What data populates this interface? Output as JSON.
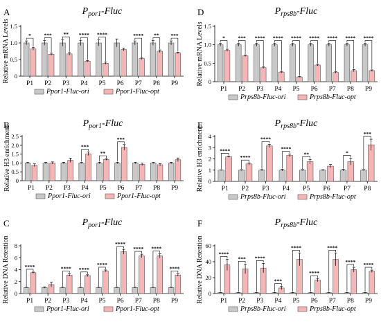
{
  "colors": {
    "ori": "#c8c8c8",
    "opt": "#f7b4b4",
    "stroke": "#000000"
  },
  "chart_data": [
    {
      "type": "bar",
      "panel": "A",
      "title_base": "P",
      "title_sub": "por1",
      "title_rest": "-Fluc",
      "ylabel": "Relative mRNA Levels",
      "ylim": [
        0,
        1.5
      ],
      "yticks": [
        0,
        0.5,
        1.0,
        1.5
      ],
      "ytick_labels": [
        "0",
        "0.5",
        "1.0",
        "1.5"
      ],
      "categories": [
        "P1",
        "P2",
        "P3",
        "P4",
        "P5",
        "P6",
        "P7",
        "P8",
        "P9"
      ],
      "series": [
        {
          "name": "Ppor1-Fluc-ori",
          "values": [
            1.0,
            1.0,
            1.0,
            1.0,
            1.0,
            1.0,
            1.0,
            1.0,
            1.0
          ],
          "errors": [
            0.06,
            0.07,
            0.1,
            0.08,
            0.09,
            0.12,
            0.06,
            0.07,
            0.06
          ]
        },
        {
          "name": "Ppor1-Fluc-opt",
          "values": [
            0.82,
            0.66,
            0.67,
            0.45,
            0.39,
            0.8,
            0.53,
            0.75,
            0.7
          ],
          "errors": [
            0.04,
            0.03,
            0.04,
            0.02,
            0.03,
            0.04,
            0.03,
            0.04,
            0.02
          ]
        }
      ],
      "significance": [
        "*",
        "***",
        "**",
        "****",
        "****",
        "",
        "****",
        "**",
        "***"
      ]
    },
    {
      "type": "bar",
      "panel": "B",
      "title_base": "P",
      "title_sub": "por1",
      "title_rest": "-Fluc",
      "ylabel": "Relative H3 enrichment",
      "ylim": [
        0,
        2.5
      ],
      "yticks": [
        0,
        0.5,
        1.0,
        1.5,
        2.0,
        2.5
      ],
      "ytick_labels": [
        "0",
        "0.5",
        "1.0",
        "1.5",
        "2.0",
        "2.5"
      ],
      "categories": [
        "P1",
        "P2",
        "P3",
        "P4",
        "P5",
        "P6",
        "P7",
        "P8",
        "P9"
      ],
      "series": [
        {
          "name": "Ppor1-Fluc-ori",
          "values": [
            1.0,
            1.0,
            1.0,
            1.0,
            1.0,
            1.0,
            1.0,
            1.0,
            1.0
          ],
          "errors": [
            0.03,
            0.04,
            0.04,
            0.03,
            0.04,
            0.04,
            0.04,
            0.03,
            0.04
          ]
        },
        {
          "name": "Ppor1-Fluc-opt",
          "values": [
            0.87,
            1.0,
            1.15,
            1.52,
            1.2,
            1.88,
            0.92,
            0.9,
            1.18
          ],
          "errors": [
            0.08,
            0.06,
            0.12,
            0.1,
            0.05,
            0.16,
            0.07,
            0.06,
            0.1
          ]
        }
      ],
      "significance": [
        "",
        "",
        "",
        "***",
        "**",
        "***",
        "",
        "",
        ""
      ]
    },
    {
      "type": "bar",
      "panel": "C",
      "title_base": "P",
      "title_sub": "por1",
      "title_rest": "-Fluc",
      "ylabel": "Relative DNA Retention",
      "ylim": [
        0,
        8
      ],
      "yticks": [
        0,
        2,
        4,
        6,
        8
      ],
      "ytick_labels": [
        "0",
        "2",
        "4",
        "6",
        "8"
      ],
      "categories": [
        "P1",
        "P2",
        "P3",
        "P4",
        "P5",
        "P6",
        "P7",
        "P8",
        "P9"
      ],
      "series": [
        {
          "name": "Ppor1-Fluc-ori",
          "values": [
            1.0,
            1.0,
            1.0,
            1.0,
            1.0,
            1.0,
            1.0,
            1.0,
            1.0
          ],
          "errors": [
            0.05,
            0.1,
            0.05,
            0.05,
            0.05,
            0.05,
            0.05,
            0.05,
            0.05
          ]
        },
        {
          "name": "Ppor1-Fluc-opt",
          "values": [
            3.5,
            1.5,
            3.1,
            3.0,
            3.8,
            7.0,
            6.3,
            6.3,
            3.1
          ],
          "errors": [
            0.1,
            0.4,
            0.2,
            0.15,
            0.15,
            0.4,
            0.3,
            0.35,
            0.2
          ]
        }
      ],
      "significance": [
        "****",
        "",
        "****",
        "****",
        "****",
        "****",
        "****",
        "****",
        "****"
      ]
    },
    {
      "type": "bar",
      "panel": "D",
      "title_base": "P",
      "title_sub": "rps8b",
      "title_rest": "-Fluc",
      "ylabel": "Relative mRNA Levels",
      "ylim": [
        0,
        1.5
      ],
      "yticks": [
        0,
        0.5,
        1.0,
        1.5
      ],
      "ytick_labels": [
        "0",
        "0.5",
        "1.0",
        "1.5"
      ],
      "categories": [
        "P1",
        "P2",
        "P3",
        "P4",
        "P5",
        "P6",
        "P7",
        "P8",
        "P9"
      ],
      "series": [
        {
          "name": "Prps8b-Fluc-ori",
          "values": [
            1.0,
            1.0,
            1.0,
            1.0,
            1.0,
            1.0,
            1.0,
            1.0,
            1.0
          ],
          "errors": [
            0.04,
            0.04,
            0.04,
            0.04,
            0.04,
            0.04,
            0.04,
            0.04,
            0.04
          ]
        },
        {
          "name": "Prps8b-Fluc-opt",
          "values": [
            0.85,
            0.7,
            0.38,
            0.26,
            0.13,
            0.45,
            0.25,
            0.3,
            0.3
          ],
          "errors": [
            0.03,
            0.02,
            0.02,
            0.02,
            0.01,
            0.02,
            0.02,
            0.03,
            0.02
          ]
        }
      ],
      "significance": [
        "*",
        "***",
        "****",
        "****",
        "****",
        "****",
        "****",
        "****",
        "****"
      ]
    },
    {
      "type": "bar",
      "panel": "E",
      "title_base": "P",
      "title_sub": "rps8b",
      "title_rest": "-Fluc",
      "ylabel": "Relative H3 enrichment",
      "ylim": [
        0,
        4
      ],
      "yticks": [
        0,
        1,
        2,
        3,
        4
      ],
      "ytick_labels": [
        "0",
        "1",
        "2",
        "3",
        "4"
      ],
      "categories": [
        "P1",
        "P2",
        "P3",
        "P4",
        "P5",
        "P6",
        "P7",
        "P8"
      ],
      "series": [
        {
          "name": "Prps8b-Fluc-ori",
          "values": [
            1.0,
            1.0,
            1.0,
            1.0,
            1.0,
            1.0,
            1.0,
            1.0
          ],
          "errors": [
            0.03,
            0.04,
            0.05,
            0.08,
            0.05,
            0.04,
            0.07,
            0.05
          ]
        },
        {
          "name": "Prps8b-Fluc-opt",
          "values": [
            2.2,
            1.55,
            3.15,
            2.3,
            1.75,
            1.35,
            1.75,
            3.25
          ],
          "errors": [
            0.05,
            0.1,
            0.15,
            0.12,
            0.2,
            0.15,
            0.3,
            0.5
          ]
        }
      ],
      "significance": [
        "****",
        "****",
        "****",
        "****",
        "**",
        "",
        "*",
        "***"
      ]
    },
    {
      "type": "bar",
      "panel": "F",
      "title_base": "P",
      "title_sub": "rps8b",
      "title_rest": "-Fluc",
      "ylabel": "Relative DNA Retention",
      "ylim": [
        0,
        60
      ],
      "yticks": [
        0,
        20,
        40,
        60
      ],
      "ytick_labels": [
        "0",
        "20",
        "40",
        "60"
      ],
      "categories": [
        "P1",
        "P2",
        "P3",
        "P4",
        "P5",
        "P6",
        "P7",
        "P8",
        "P9"
      ],
      "series": [
        {
          "name": "Prps8b-Fluc-ori",
          "values": [
            1.0,
            1.0,
            1.0,
            1.0,
            1.0,
            1.0,
            1.0,
            1.0,
            1.0
          ],
          "errors": [
            0.3,
            0.3,
            0.3,
            0.3,
            0.3,
            0.3,
            0.3,
            0.3,
            0.3
          ]
        },
        {
          "name": "Prps8b-Fluc-opt",
          "values": [
            36,
            31,
            32,
            7,
            43,
            17,
            43,
            30,
            28
          ],
          "errors": [
            7,
            6,
            6,
            2,
            8,
            2,
            8,
            3,
            1.5
          ]
        }
      ],
      "significance": [
        "****",
        "***",
        "****",
        "***",
        "****",
        "****",
        "****",
        "****",
        "****"
      ]
    }
  ]
}
